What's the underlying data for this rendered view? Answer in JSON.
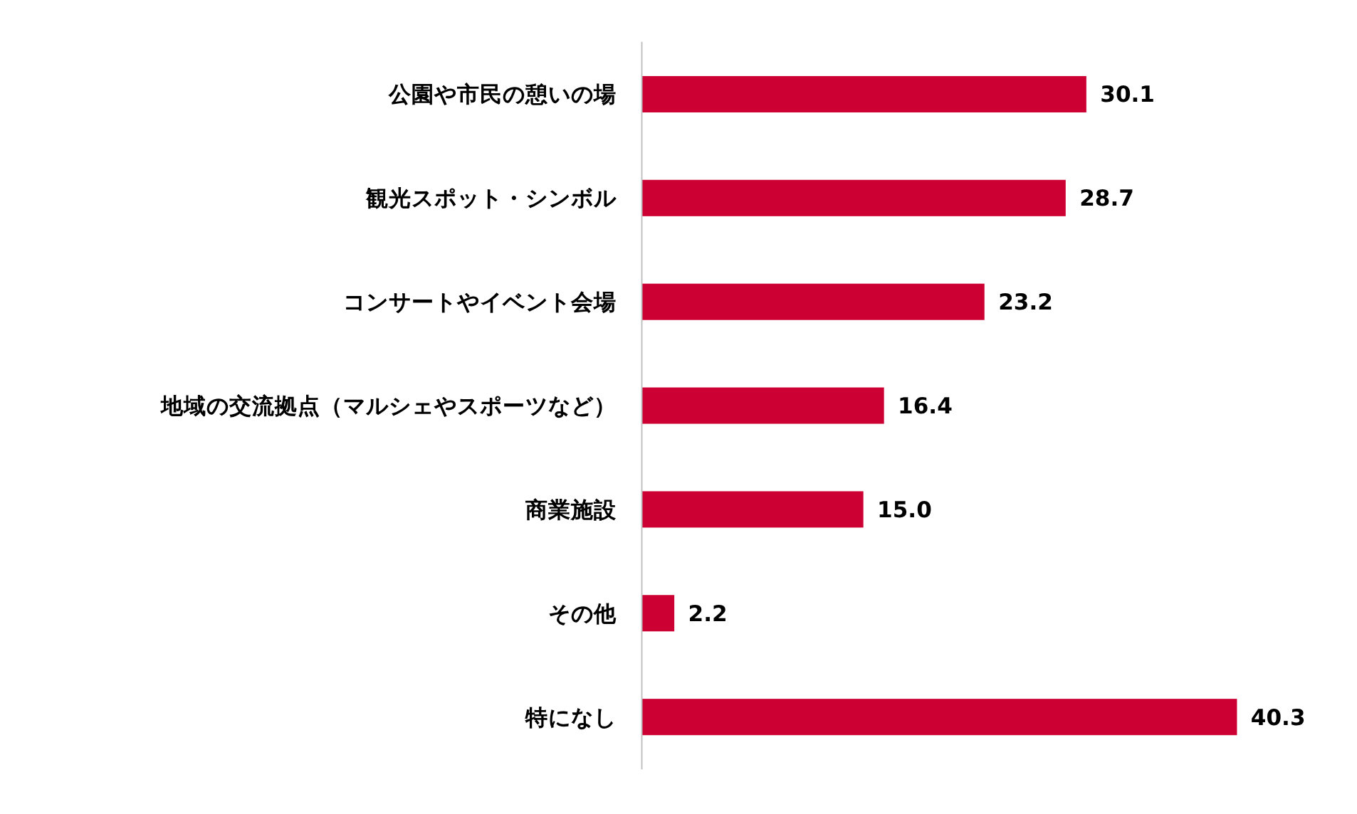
{
  "chart_data": {
    "type": "bar",
    "orientation": "horizontal",
    "categories": [
      "公園や市民の憩いの場",
      "観光スポット・シンボル",
      "コンサートやイベント会場",
      "地域の交流拠点（マルシェやスポーツなど）",
      "商業施設",
      "その他",
      "特になし"
    ],
    "values": [
      30.1,
      28.7,
      23.2,
      16.4,
      15.0,
      2.2,
      40.3
    ],
    "value_labels": [
      "30.1",
      "28.7",
      "23.2",
      "16.4",
      "15.0",
      "2.2",
      "40.3"
    ],
    "color": "#cc0033"
  }
}
